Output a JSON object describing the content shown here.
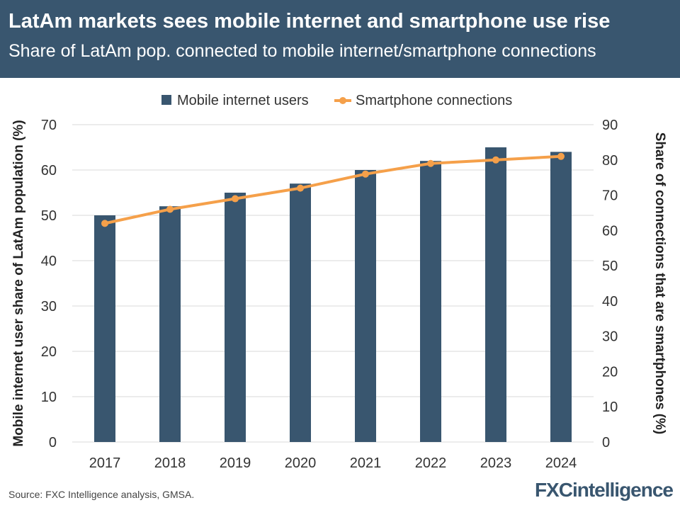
{
  "header": {
    "title": "LatAm markets sees mobile internet and smartphone use rise",
    "subtitle": "Share of LatAm pop. connected to mobile internet/smartphone connections"
  },
  "footer": {
    "source": "Source: FXC Intelligence analysis, GMSA.",
    "brand": "FXCintelligence"
  },
  "colors": {
    "header_bg": "#39566f",
    "bar": "#39566f",
    "line": "#f5a04a"
  },
  "chart_data": {
    "type": "bar",
    "categories": [
      "2017",
      "2018",
      "2019",
      "2020",
      "2021",
      "2022",
      "2023",
      "2024"
    ],
    "series": [
      {
        "name": "Mobile internet users",
        "type": "bar",
        "axis": "left",
        "values": [
          50,
          52,
          55,
          57,
          60,
          62,
          65,
          64
        ]
      },
      {
        "name": "Smartphone connections",
        "type": "line",
        "axis": "right",
        "values": [
          62,
          66,
          69,
          72,
          76,
          79,
          80,
          81
        ]
      }
    ],
    "ylabel": "Mobile internet user share of LatAm population (%)",
    "y2label": "Share of connections that are smartphones (%)",
    "ylim": [
      0,
      70
    ],
    "y2lim": [
      0,
      90
    ],
    "yticks": [
      0,
      10,
      20,
      30,
      40,
      50,
      60,
      70
    ],
    "y2ticks": [
      0,
      10,
      20,
      30,
      40,
      50,
      60,
      70,
      80,
      90
    ],
    "legend": "top-center",
    "grid": true
  }
}
